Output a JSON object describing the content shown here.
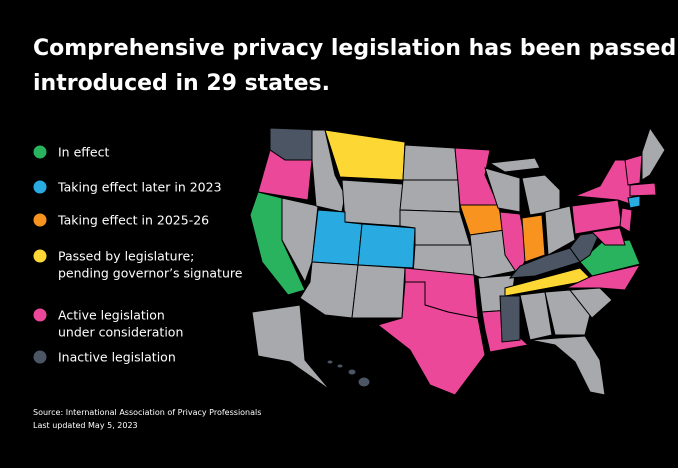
{
  "title": [
    "Comprehensive privacy legislation has been passed or",
    "introduced in 29 states."
  ],
  "legend": [
    {
      "label": [
        "In effect"
      ],
      "color": "#2ab35e"
    },
    {
      "label": [
        "Taking effect later in 2023"
      ],
      "color": "#29abe2"
    },
    {
      "label": [
        "Taking effect in 2025-26"
      ],
      "color": "#f7931e"
    },
    {
      "label": [
        "Passed by legislature;",
        "pending governor’s signature"
      ],
      "color": "#fdd835"
    },
    {
      "label": [
        "Active legislation",
        "under consideration"
      ],
      "color": "#ec4899"
    },
    {
      "label": [
        "Inactive legislation"
      ],
      "color": "#4b5563"
    }
  ],
  "base_color": "#a7a9ac",
  "source": "Source: International Association of Privacy Professionals",
  "updated": "Last updated May 5, 2023"
}
